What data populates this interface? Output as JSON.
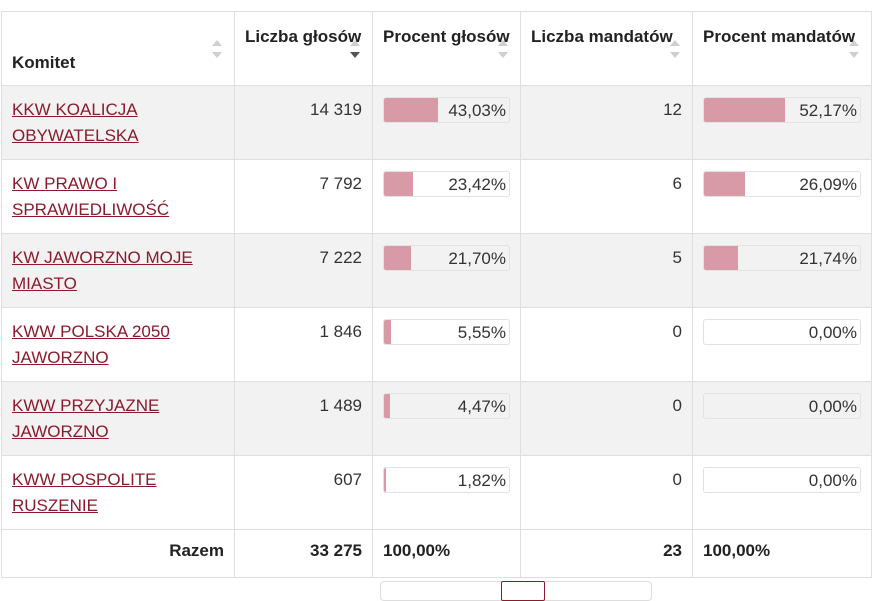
{
  "table": {
    "headers": {
      "committee": "Komitet",
      "votes_count": "Liczba głosów",
      "votes_percent": "Procent głosów",
      "seats_count": "Liczba mandatów",
      "seats_percent": "Procent mandatów"
    },
    "sorted_column": "votes_count",
    "sort_direction": "descending",
    "rows": [
      {
        "committee": "KKW KOALICJA OBYWATELSKA",
        "votes": "14 319",
        "votes_pct": "43,03%",
        "votes_pct_value": 43.03,
        "seats": "12",
        "seats_pct": "52,17%",
        "seats_pct_value": 52.17
      },
      {
        "committee": "KW PRAWO I SPRAWIEDLIWOŚĆ",
        "votes": "7 792",
        "votes_pct": "23,42%",
        "votes_pct_value": 23.42,
        "seats": "6",
        "seats_pct": "26,09%",
        "seats_pct_value": 26.09
      },
      {
        "committee": "KW JAWORZNO MOJE MIASTO",
        "votes": "7 222",
        "votes_pct": "21,70%",
        "votes_pct_value": 21.7,
        "seats": "5",
        "seats_pct": "21,74%",
        "seats_pct_value": 21.74
      },
      {
        "committee": "KWW POLSKA 2050 JAWORZNO",
        "votes": "1 846",
        "votes_pct": "5,55%",
        "votes_pct_value": 5.55,
        "seats": "0",
        "seats_pct": "0,00%",
        "seats_pct_value": 0
      },
      {
        "committee": "KWW PRZYJAZNE JAWORZNO",
        "votes": "1 489",
        "votes_pct": "4,47%",
        "votes_pct_value": 4.47,
        "seats": "0",
        "seats_pct": "0,00%",
        "seats_pct_value": 0
      },
      {
        "committee": "KWW POSPOLITE RUSZENIE",
        "votes": "607",
        "votes_pct": "1,82%",
        "votes_pct_value": 1.82,
        "seats": "0",
        "seats_pct": "0,00%",
        "seats_pct_value": 0
      }
    ],
    "footer": {
      "label": "Razem",
      "votes": "33 275",
      "votes_pct": "100,00%",
      "seats": "23",
      "seats_pct": "100,00%"
    }
  },
  "colors": {
    "link": "#8b1a2b",
    "bar_fill": "#d99aa8",
    "stripe": "#f2f2f2"
  }
}
